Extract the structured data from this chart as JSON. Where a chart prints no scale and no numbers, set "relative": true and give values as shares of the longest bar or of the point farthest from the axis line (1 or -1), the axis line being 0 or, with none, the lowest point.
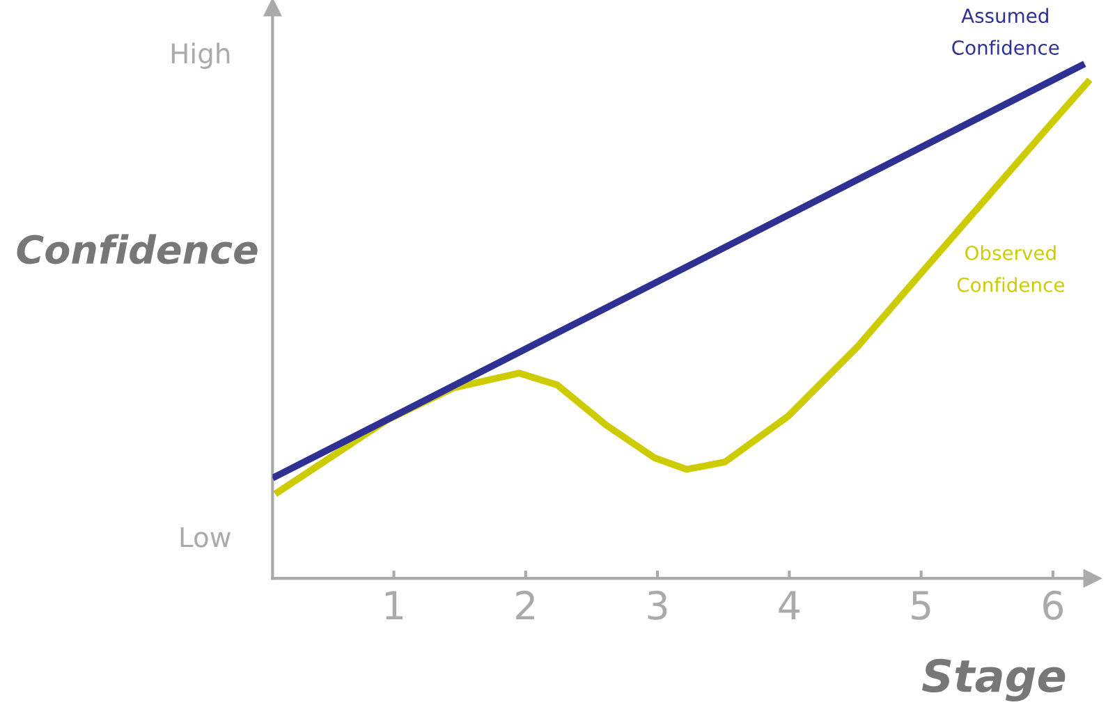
{
  "chart_data": {
    "type": "line",
    "xlabel": "Stage",
    "ylabel": "Confidence",
    "xlim": [
      0.08,
      6.3
    ],
    "xticks": [
      1,
      2,
      3,
      4,
      5,
      6
    ],
    "relative": true,
    "annotations": [
      "High",
      "Low"
    ],
    "grid": false,
    "legend": false,
    "line_style": "solid",
    "marker": "none",
    "series": [
      {
        "name": "Assumed\nConfidence",
        "color": "#2e3192",
        "x": [
          0.08,
          6.24
        ],
        "values": [
          0.195,
          1.0
        ]
      },
      {
        "name": "Observed\nConfidence",
        "color": "#cccc00",
        "x": [
          0.1,
          0.95,
          1.45,
          1.95,
          2.24,
          2.61,
          2.98,
          3.22,
          3.51,
          3.99,
          4.52,
          5.05,
          5.58,
          5.95,
          6.28
        ],
        "values": [
          0.164,
          0.308,
          0.37,
          0.399,
          0.376,
          0.298,
          0.234,
          0.212,
          0.226,
          0.315,
          0.451,
          0.608,
          0.764,
          0.873,
          0.969
        ]
      }
    ]
  }
}
